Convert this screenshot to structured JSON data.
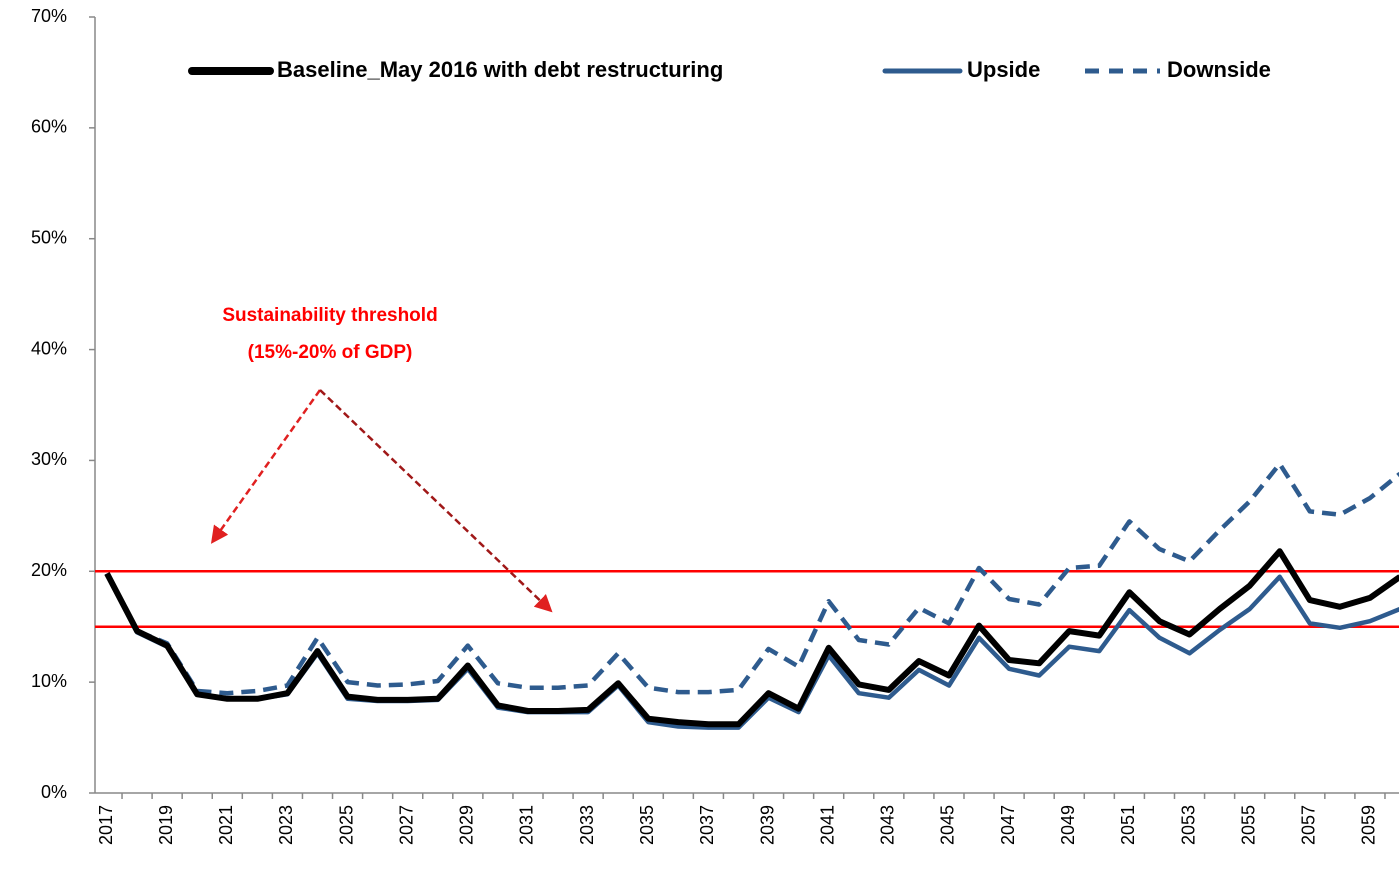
{
  "chart_data": {
    "type": "line",
    "categories": [
      2017,
      null,
      2019,
      null,
      2021,
      null,
      2023,
      null,
      2025,
      null,
      2027,
      null,
      2029,
      null,
      2031,
      null,
      2033,
      null,
      2035,
      null,
      2037,
      null,
      2039,
      null,
      2041,
      null,
      2043,
      null,
      2045,
      null,
      2047,
      null,
      2049,
      null,
      2051,
      null,
      2053,
      null,
      2055,
      null,
      2057,
      null,
      2059,
      null
    ],
    "series": [
      {
        "name": "Baseline_May 2016 with debt restructuring",
        "color": "#000000",
        "linestyle": "solid",
        "values": [
          19.8,
          14.6,
          13.3,
          8.9,
          8.5,
          8.5,
          9.0,
          12.8,
          8.7,
          8.4,
          8.4,
          8.5,
          11.5,
          7.9,
          7.4,
          7.4,
          7.5,
          9.9,
          6.7,
          6.4,
          6.2,
          6.2,
          9.0,
          7.6,
          13.1,
          9.8,
          9.3,
          11.9,
          10.6,
          15.1,
          12.0,
          11.7,
          14.6,
          14.2,
          18.1,
          15.5,
          14.3,
          16.6,
          18.7,
          21.8,
          17.4,
          16.8,
          17.6,
          19.5
        ]
      },
      {
        "name": "Upside",
        "color": "#2e5b8e",
        "linestyle": "solid",
        "values": [
          19.8,
          14.5,
          13.2,
          8.9,
          8.5,
          8.5,
          8.9,
          12.6,
          8.5,
          8.3,
          8.3,
          8.4,
          11.2,
          7.7,
          7.3,
          7.3,
          7.3,
          9.7,
          6.4,
          6.0,
          5.9,
          5.9,
          8.6,
          7.3,
          12.4,
          9.0,
          8.6,
          11.1,
          9.7,
          14.0,
          11.2,
          10.6,
          13.2,
          12.8,
          16.5,
          14.0,
          12.6,
          14.7,
          16.6,
          19.5,
          15.3,
          14.9,
          15.5,
          16.6
        ]
      },
      {
        "name": "Downside",
        "color": "#2e5b8e",
        "linestyle": "dashed",
        "values": [
          19.8,
          14.6,
          13.5,
          9.2,
          9.0,
          9.2,
          9.7,
          14.0,
          10.0,
          9.7,
          9.8,
          10.1,
          13.3,
          9.9,
          9.5,
          9.5,
          9.7,
          12.6,
          9.5,
          9.1,
          9.1,
          9.3,
          13.0,
          11.4,
          17.3,
          13.8,
          13.4,
          16.7,
          15.3,
          20.3,
          17.5,
          17.0,
          20.3,
          20.5,
          24.5,
          22.0,
          20.9,
          23.7,
          26.3,
          29.7,
          25.4,
          25.1,
          26.6,
          28.8
        ]
      }
    ],
    "ylim": [
      0,
      70
    ],
    "yticks": [
      {
        "value": 0,
        "label": "0%"
      },
      {
        "value": 10,
        "label": "10%"
      },
      {
        "value": 20,
        "label": "20%"
      },
      {
        "value": 30,
        "label": "30%"
      },
      {
        "value": 40,
        "label": "40%"
      },
      {
        "value": 50,
        "label": "50%"
      },
      {
        "value": 60,
        "label": "60%"
      },
      {
        "value": 70,
        "label": "70%"
      }
    ],
    "hlines": [
      15,
      20
    ],
    "hline_color": "#ff0000",
    "annotations": [
      "Sustainability  threshold",
      "(15%-20% of GDP)"
    ],
    "legend": "top",
    "grid": false
  }
}
